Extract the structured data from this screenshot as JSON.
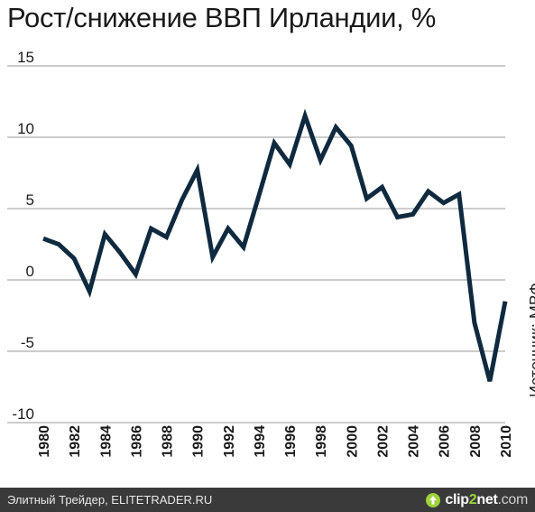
{
  "chart_data": {
    "type": "line",
    "title": "Рост/снижение ВВП Ирландии, %",
    "x": [
      1980,
      1981,
      1982,
      1983,
      1984,
      1985,
      1986,
      1987,
      1988,
      1989,
      1990,
      1991,
      1992,
      1993,
      1994,
      1995,
      1996,
      1997,
      1998,
      1999,
      2000,
      2001,
      2002,
      2003,
      2004,
      2005,
      2006,
      2007,
      2008,
      2009,
      2010
    ],
    "series": [
      {
        "values": [
          2.9,
          2.5,
          1.5,
          -0.8,
          3.2,
          1.9,
          0.4,
          3.6,
          3.0,
          5.6,
          7.7,
          1.6,
          3.6,
          2.3,
          5.9,
          9.6,
          8.1,
          11.5,
          8.4,
          10.7,
          9.4,
          5.7,
          6.5,
          4.4,
          4.6,
          6.2,
          5.4,
          6.0,
          -3.0,
          -7.1,
          -1.5
        ],
        "color": "#0f2a3e"
      }
    ],
    "yticks": [
      "15",
      "10",
      "5",
      "0",
      "-5",
      "-10"
    ],
    "xticks": [
      "1980",
      "1982",
      "1984",
      "1986",
      "1988",
      "1990",
      "1992",
      "1994",
      "1996",
      "1998",
      "2000",
      "2002",
      "2004",
      "2006",
      "2008",
      "2010"
    ],
    "ylim": [
      -10,
      15
    ],
    "xlim": [
      1980,
      2010
    ],
    "grid": "horizontal",
    "xlabel": "",
    "ylabel": "",
    "source": "Источник: МВФ"
  },
  "footer": {
    "credit": "Элитный Трейдер, ELITETRADER.RU",
    "logo_part1": "clip",
    "logo_part2": "2",
    "logo_part3": "net",
    "logo_part4": ".com"
  },
  "colors": {
    "line": "#0f2a3e",
    "grid": "#9a9a9a",
    "axis": "#1a1a1a",
    "footer_bg": "#3a3a3a",
    "logo_accent": "#9fd23a"
  }
}
